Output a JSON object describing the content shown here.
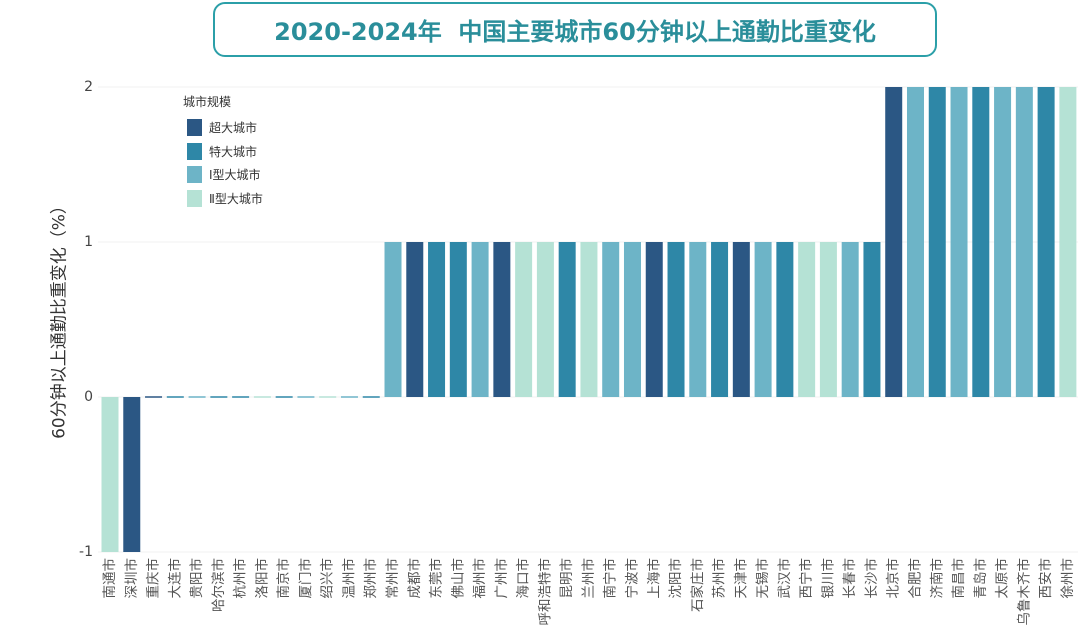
{
  "chart_data": {
    "type": "bar",
    "title": "2020-2024年  中国主要城市60分钟以上通勤比重变化",
    "xlabel": "",
    "ylabel": "60分钟以上通勤比重变化（%）",
    "ylim": [
      -1,
      2
    ],
    "yticks": [
      2,
      1,
      0,
      -1
    ],
    "grid": true,
    "legend": {
      "title": "城市规模",
      "placement": "top-left",
      "items": [
        {
          "label": "超大城市",
          "color": "#2b5784"
        },
        {
          "label": "特大城市",
          "color": "#2e87a7"
        },
        {
          "label": "Ⅰ型大城市",
          "color": "#6db4c7"
        },
        {
          "label": "Ⅱ型大城市",
          "color": "#b5e2d5"
        }
      ]
    },
    "categories": [
      "南通市",
      "深圳市",
      "重庆市",
      "大连市",
      "贵阳市",
      "哈尔滨市",
      "杭州市",
      "洛阳市",
      "南京市",
      "厦门市",
      "绍兴市",
      "温州市",
      "郑州市",
      "常州市",
      "成都市",
      "东莞市",
      "佛山市",
      "福州市",
      "广州市",
      "海口市",
      "呼和浩特市",
      "昆明市",
      "兰州市",
      "南宁市",
      "宁波市",
      "上海市",
      "沈阳市",
      "石家庄市",
      "苏州市",
      "天津市",
      "无锡市",
      "武汉市",
      "西宁市",
      "银川市",
      "长春市",
      "长沙市",
      "北京市",
      "合肥市",
      "济南市",
      "南昌市",
      "青岛市",
      "太原市",
      "乌鲁木齐市",
      "西安市",
      "徐州市"
    ],
    "values": [
      -1,
      -1,
      0,
      0,
      0,
      0,
      0,
      0,
      0,
      0,
      0,
      0,
      0,
      1,
      1,
      1,
      1,
      1,
      1,
      1,
      1,
      1,
      1,
      1,
      1,
      1,
      1,
      1,
      1,
      1,
      1,
      1,
      1,
      1,
      1,
      1,
      2,
      2,
      2,
      2,
      2,
      2,
      2,
      2,
      2
    ],
    "size_class": [
      3,
      0,
      0,
      1,
      2,
      1,
      1,
      3,
      1,
      2,
      3,
      2,
      1,
      2,
      0,
      1,
      1,
      2,
      0,
      3,
      3,
      1,
      3,
      2,
      2,
      0,
      1,
      2,
      1,
      0,
      2,
      1,
      3,
      3,
      2,
      1,
      0,
      2,
      1,
      2,
      1,
      2,
      2,
      1,
      3
    ]
  },
  "colors": {
    "title_text": "#2a8e9a",
    "title_border": "#2b9fa8"
  }
}
